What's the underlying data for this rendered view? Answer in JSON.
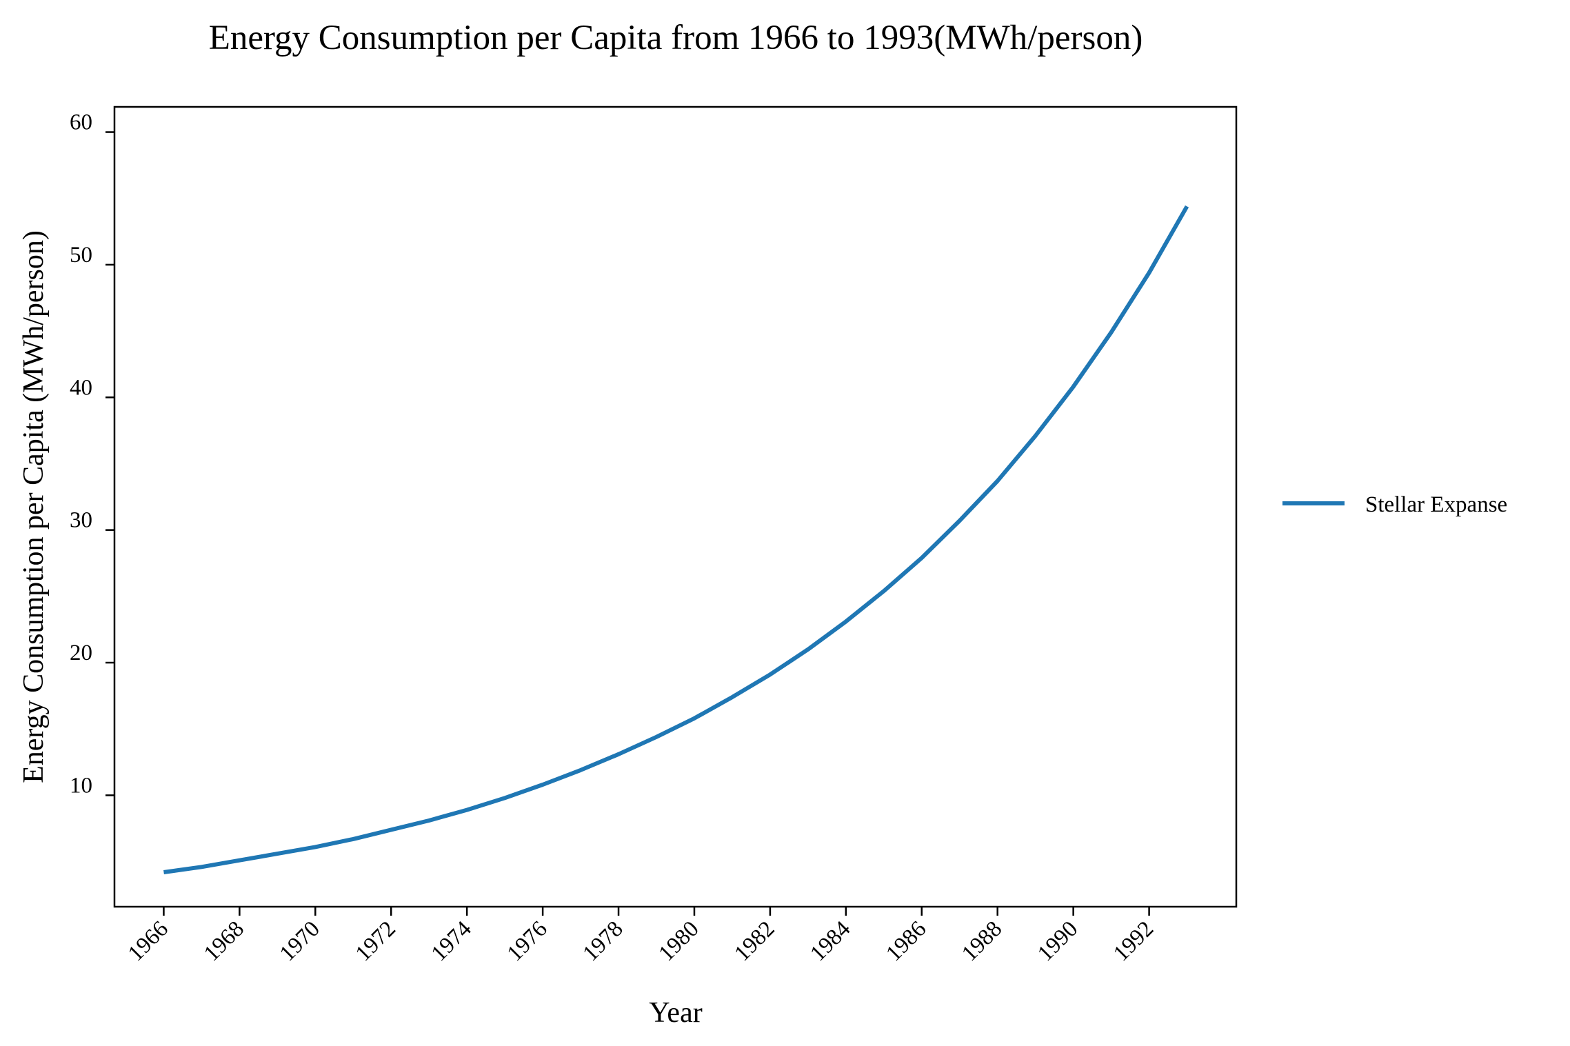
{
  "chart_data": {
    "type": "line",
    "title": "Energy Consumption per Capita from 1966 to 1993(MWh/person)",
    "xlabel": "Year",
    "ylabel": "Energy Consumption per Capita (MWh/person)",
    "x": [
      1966,
      1967,
      1968,
      1969,
      1970,
      1971,
      1972,
      1973,
      1974,
      1975,
      1976,
      1977,
      1978,
      1979,
      1980,
      1981,
      1982,
      1983,
      1984,
      1985,
      1986,
      1987,
      1988,
      1989,
      1990,
      1991,
      1992,
      1993
    ],
    "series": [
      {
        "name": "Stellar Expanse",
        "color": "#1f77b4",
        "values": [
          4.2,
          4.6,
          5.1,
          5.6,
          6.1,
          6.7,
          7.4,
          8.1,
          8.9,
          9.8,
          10.8,
          11.9,
          13.1,
          14.4,
          15.8,
          17.4,
          19.1,
          21.0,
          23.1,
          25.4,
          27.9,
          30.7,
          33.7,
          37.1,
          40.8,
          44.9,
          49.4,
          54.4
        ]
      }
    ],
    "xticks": [
      "1966",
      "1968",
      "1970",
      "1972",
      "1974",
      "1976",
      "1978",
      "1980",
      "1982",
      "1984",
      "1986",
      "1988",
      "1990",
      "1992"
    ],
    "yticks": [
      "10",
      "20",
      "30",
      "40",
      "50",
      "60"
    ],
    "xlim": [
      1964.7,
      1994.3
    ],
    "ylim": [
      1.6,
      61.9
    ],
    "legend_position": "right",
    "grid": false
  }
}
